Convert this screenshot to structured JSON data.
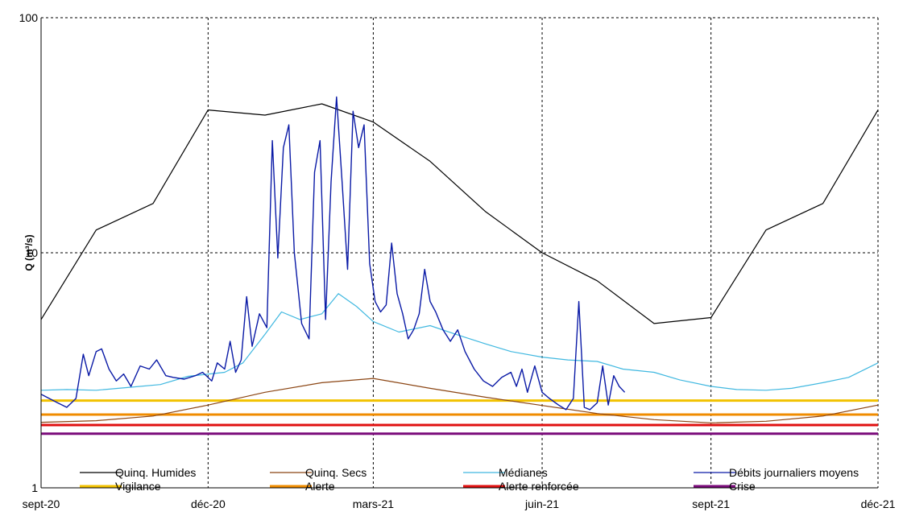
{
  "chart_data": {
    "type": "line",
    "ylabel": "Q (m³/s)",
    "y_scale": "log",
    "ylim": [
      1,
      100
    ],
    "y_ticks": [
      {
        "value": 1,
        "label": "1"
      },
      {
        "value": 10,
        "label": "10"
      },
      {
        "value": 100,
        "label": "100"
      }
    ],
    "xlim": [
      "2020-09-01",
      "2021-12-01"
    ],
    "x_ticks": [
      {
        "date": "2020-09-01",
        "label": "sept-20"
      },
      {
        "date": "2020-12-01",
        "label": "déc-20"
      },
      {
        "date": "2021-03-01",
        "label": "mars-21"
      },
      {
        "date": "2021-06-01",
        "label": "juin-21"
      },
      {
        "date": "2021-09-01",
        "label": "sept-21"
      },
      {
        "date": "2021-12-01",
        "label": "déc-21"
      }
    ],
    "grid": true,
    "legend_position": "bottom",
    "series": [
      {
        "name": "Quinq. Humides",
        "color": "#000000",
        "width": 1.2,
        "points": [
          [
            "2020-09-01",
            5.2
          ],
          [
            "2020-10-01",
            12.5
          ],
          [
            "2020-11-01",
            16.2
          ],
          [
            "2020-12-01",
            40.5
          ],
          [
            "2021-01-01",
            38.5
          ],
          [
            "2021-02-01",
            43
          ],
          [
            "2021-03-01",
            36
          ],
          [
            "2021-04-01",
            24.5
          ],
          [
            "2021-05-01",
            15
          ],
          [
            "2021-06-01",
            10
          ],
          [
            "2021-07-01",
            7.6
          ],
          [
            "2021-08-01",
            5
          ],
          [
            "2021-09-01",
            5.3
          ],
          [
            "2021-10-01",
            12.5
          ],
          [
            "2021-11-01",
            16.2
          ],
          [
            "2021-12-01",
            40.5
          ]
        ]
      },
      {
        "name": "Quinq. Secs",
        "color": "#8b4513",
        "width": 1.2,
        "points": [
          [
            "2020-09-01",
            1.9
          ],
          [
            "2020-10-01",
            1.93
          ],
          [
            "2020-11-01",
            2.02
          ],
          [
            "2020-12-01",
            2.25
          ],
          [
            "2021-01-01",
            2.55
          ],
          [
            "2021-02-01",
            2.8
          ],
          [
            "2021-03-01",
            2.92
          ],
          [
            "2021-04-01",
            2.65
          ],
          [
            "2021-05-01",
            2.43
          ],
          [
            "2021-06-01",
            2.24
          ],
          [
            "2021-07-01",
            2.07
          ],
          [
            "2021-08-01",
            1.95
          ],
          [
            "2021-09-01",
            1.89
          ],
          [
            "2021-10-01",
            1.92
          ],
          [
            "2021-11-01",
            2.02
          ],
          [
            "2021-12-01",
            2.25
          ]
        ]
      },
      {
        "name": "Médianes",
        "color": "#40b8e0",
        "width": 1.2,
        "points": [
          [
            "2020-09-01",
            2.6
          ],
          [
            "2020-09-15",
            2.62
          ],
          [
            "2020-10-01",
            2.6
          ],
          [
            "2020-10-20",
            2.68
          ],
          [
            "2020-11-05",
            2.75
          ],
          [
            "2020-11-20",
            2.98
          ],
          [
            "2020-12-10",
            3.1
          ],
          [
            "2020-12-20",
            3.4
          ],
          [
            "2021-01-01",
            4.5
          ],
          [
            "2021-01-10",
            5.6
          ],
          [
            "2021-01-20",
            5.2
          ],
          [
            "2021-02-01",
            5.5
          ],
          [
            "2021-02-10",
            6.7
          ],
          [
            "2021-02-20",
            5.9
          ],
          [
            "2021-03-01",
            5.1
          ],
          [
            "2021-03-15",
            4.6
          ],
          [
            "2021-04-01",
            4.9
          ],
          [
            "2021-04-15",
            4.5
          ],
          [
            "2021-05-01",
            4.1
          ],
          [
            "2021-05-15",
            3.8
          ],
          [
            "2021-06-01",
            3.6
          ],
          [
            "2021-06-15",
            3.5
          ],
          [
            "2021-07-01",
            3.45
          ],
          [
            "2021-07-15",
            3.2
          ],
          [
            "2021-08-01",
            3.1
          ],
          [
            "2021-08-15",
            2.88
          ],
          [
            "2021-09-01",
            2.7
          ],
          [
            "2021-09-15",
            2.62
          ],
          [
            "2021-10-01",
            2.6
          ],
          [
            "2021-10-15",
            2.65
          ],
          [
            "2021-11-01",
            2.8
          ],
          [
            "2021-11-15",
            2.95
          ],
          [
            "2021-12-01",
            3.4
          ]
        ]
      },
      {
        "name": "Débits journaliers moyens",
        "color": "#0a1aa6",
        "width": 1.4,
        "points": [
          [
            "2020-09-01",
            2.5
          ],
          [
            "2020-09-10",
            2.3
          ],
          [
            "2020-09-15",
            2.2
          ],
          [
            "2020-09-20",
            2.4
          ],
          [
            "2020-09-24",
            3.7
          ],
          [
            "2020-09-27",
            3.0
          ],
          [
            "2020-10-01",
            3.8
          ],
          [
            "2020-10-04",
            3.9
          ],
          [
            "2020-10-08",
            3.2
          ],
          [
            "2020-10-12",
            2.85
          ],
          [
            "2020-10-16",
            3.05
          ],
          [
            "2020-10-20",
            2.7
          ],
          [
            "2020-10-25",
            3.3
          ],
          [
            "2020-10-30",
            3.2
          ],
          [
            "2020-11-03",
            3.5
          ],
          [
            "2020-11-08",
            3.0
          ],
          [
            "2020-11-12",
            2.95
          ],
          [
            "2020-11-18",
            2.9
          ],
          [
            "2020-11-24",
            3.0
          ],
          [
            "2020-11-28",
            3.1
          ],
          [
            "2020-12-03",
            2.85
          ],
          [
            "2020-12-06",
            3.4
          ],
          [
            "2020-12-10",
            3.2
          ],
          [
            "2020-12-13",
            4.2
          ],
          [
            "2020-12-16",
            3.1
          ],
          [
            "2020-12-19",
            3.5
          ],
          [
            "2020-12-22",
            6.5
          ],
          [
            "2020-12-25",
            4.0
          ],
          [
            "2020-12-29",
            5.5
          ],
          [
            "2021-01-02",
            4.8
          ],
          [
            "2021-01-05",
            30
          ],
          [
            "2021-01-08",
            9.5
          ],
          [
            "2021-01-11",
            28
          ],
          [
            "2021-01-14",
            35
          ],
          [
            "2021-01-17",
            10
          ],
          [
            "2021-01-21",
            5.0
          ],
          [
            "2021-01-25",
            4.3
          ],
          [
            "2021-01-28",
            22
          ],
          [
            "2021-01-31",
            30
          ],
          [
            "2021-02-03",
            5.2
          ],
          [
            "2021-02-06",
            20
          ],
          [
            "2021-02-09",
            46
          ],
          [
            "2021-02-12",
            20
          ],
          [
            "2021-02-15",
            8.5
          ],
          [
            "2021-02-18",
            40
          ],
          [
            "2021-02-21",
            28
          ],
          [
            "2021-02-24",
            35
          ],
          [
            "2021-02-27",
            9
          ],
          [
            "2021-03-02",
            6.2
          ],
          [
            "2021-03-05",
            5.6
          ],
          [
            "2021-03-08",
            6.0
          ],
          [
            "2021-03-11",
            11
          ],
          [
            "2021-03-14",
            6.7
          ],
          [
            "2021-03-17",
            5.5
          ],
          [
            "2021-03-20",
            4.3
          ],
          [
            "2021-03-23",
            4.7
          ],
          [
            "2021-03-26",
            5.5
          ],
          [
            "2021-03-29",
            8.5
          ],
          [
            "2021-04-01",
            6.2
          ],
          [
            "2021-04-04",
            5.6
          ],
          [
            "2021-04-08",
            4.7
          ],
          [
            "2021-04-12",
            4.2
          ],
          [
            "2021-04-16",
            4.7
          ],
          [
            "2021-04-20",
            3.8
          ],
          [
            "2021-04-25",
            3.2
          ],
          [
            "2021-04-30",
            2.85
          ],
          [
            "2021-05-05",
            2.7
          ],
          [
            "2021-05-10",
            2.95
          ],
          [
            "2021-05-15",
            3.1
          ],
          [
            "2021-05-18",
            2.7
          ],
          [
            "2021-05-21",
            3.2
          ],
          [
            "2021-05-24",
            2.55
          ],
          [
            "2021-05-28",
            3.3
          ],
          [
            "2021-06-01",
            2.55
          ],
          [
            "2021-06-05",
            2.4
          ],
          [
            "2021-06-10",
            2.25
          ],
          [
            "2021-06-14",
            2.15
          ],
          [
            "2021-06-18",
            2.4
          ],
          [
            "2021-06-21",
            6.2
          ],
          [
            "2021-06-24",
            2.2
          ],
          [
            "2021-06-27",
            2.15
          ],
          [
            "2021-07-01",
            2.3
          ],
          [
            "2021-07-04",
            3.3
          ],
          [
            "2021-07-07",
            2.25
          ],
          [
            "2021-07-10",
            3.0
          ],
          [
            "2021-07-13",
            2.7
          ],
          [
            "2021-07-16",
            2.55
          ]
        ]
      },
      {
        "name": "Vigilance",
        "color": "#f2c200",
        "width": 3,
        "constant": 2.35
      },
      {
        "name": "Alerte",
        "color": "#f08c00",
        "width": 3,
        "constant": 2.05
      },
      {
        "name": "Alerte renforcée",
        "color": "#e01010",
        "width": 3,
        "constant": 1.85
      },
      {
        "name": "Crise",
        "color": "#7a0a7a",
        "width": 3,
        "constant": 1.7
      }
    ]
  }
}
